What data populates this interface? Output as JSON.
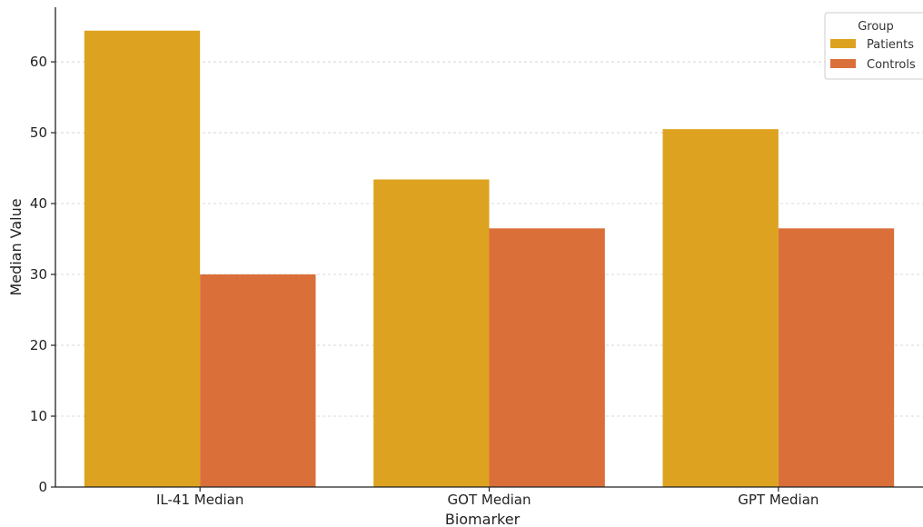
{
  "chart_data": {
    "type": "bar",
    "categories": [
      "IL-41 Median",
      "GOT Median",
      "GPT Median"
    ],
    "series": [
      {
        "name": "Patients",
        "values": [
          64.4,
          43.4,
          50.5
        ],
        "color": "#DDA21F"
      },
      {
        "name": "Controls",
        "values": [
          30.0,
          36.5,
          36.5
        ],
        "color": "#DA6F3A"
      }
    ],
    "xlabel": "Biomarker",
    "ylabel": "Median Value",
    "ylim": [
      0,
      67.7
    ],
    "yticks": [
      0,
      10,
      20,
      30,
      40,
      50,
      60
    ],
    "grid": true,
    "legend": {
      "title": "Group",
      "position": "top-right"
    }
  }
}
